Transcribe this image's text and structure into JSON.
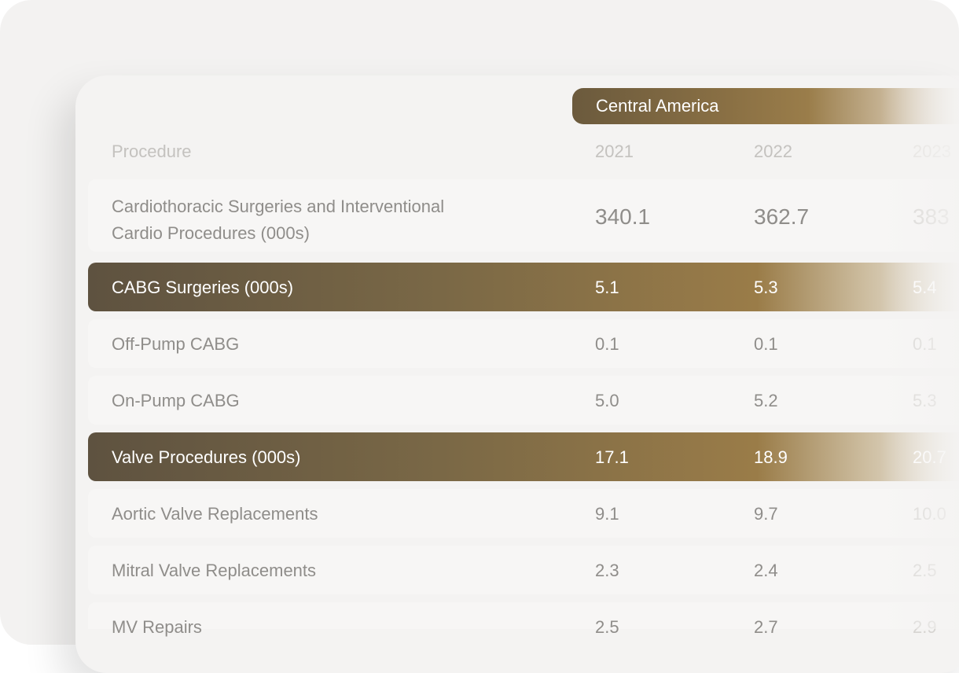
{
  "region": "Central America",
  "header": {
    "procedure": "Procedure",
    "years": [
      "2021",
      "2022",
      "2023"
    ]
  },
  "rows": [
    {
      "label_line1": "Cardiothoracic Surgeries and Interventional",
      "label_line2": "Cardio Procedures (000s)",
      "values": [
        "340.1",
        "362.7",
        "383"
      ]
    },
    {
      "label": "CABG Surgeries (000s)",
      "values": [
        "5.1",
        "5.3",
        "5.4"
      ],
      "highlighted": true
    },
    {
      "label": "Off-Pump CABG",
      "values": [
        "0.1",
        "0.1",
        "0.1"
      ]
    },
    {
      "label": "On-Pump CABG",
      "values": [
        "5.0",
        "5.2",
        "5.3"
      ]
    },
    {
      "label": "Valve Procedures (000s)",
      "values": [
        "17.1",
        "18.9",
        "20.7"
      ],
      "highlighted": true
    },
    {
      "label": "Aortic Valve Replacements",
      "values": [
        "9.1",
        "9.7",
        "10.0"
      ]
    },
    {
      "label": "Mitral Valve Replacements",
      "values": [
        "2.3",
        "2.4",
        "2.5"
      ]
    },
    {
      "label": "MV Repairs",
      "values": [
        "2.5",
        "2.7",
        "2.9"
      ]
    }
  ],
  "colors": {
    "accent": "#8a7044",
    "accent_dark": "#5e5240",
    "background": "#f4f3f2"
  }
}
